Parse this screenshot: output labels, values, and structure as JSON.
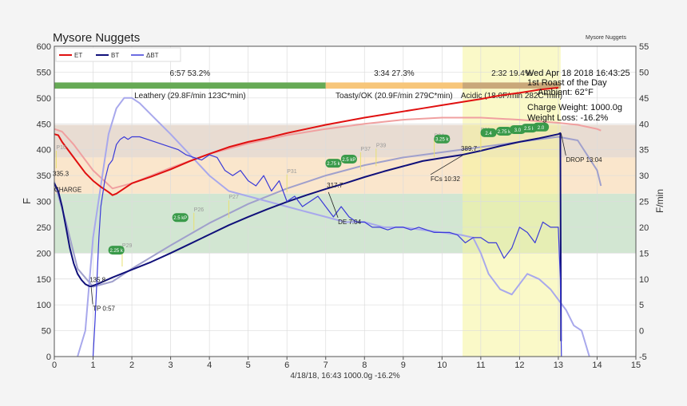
{
  "chart_data": {
    "type": "line",
    "title": "Mysore Nuggets",
    "corner_label": "Mysore Nuggets",
    "xlabel": "4/18/18, 16:43   1000.0g   -16.2%",
    "ylabel_left": "F",
    "ylabel_right": "F/min",
    "xlim": [
      0,
      15
    ],
    "ylim_left": [
      0,
      600
    ],
    "ylim_right": [
      -5,
      55
    ],
    "x_ticks": [
      "0",
      "1",
      "2",
      "3",
      "4",
      "5",
      "6",
      "7",
      "8",
      "9",
      "10",
      "11",
      "12",
      "13",
      "14",
      "15"
    ],
    "y_ticks_left": [
      "0",
      "50",
      "100",
      "150",
      "200",
      "250",
      "300",
      "350",
      "400",
      "450",
      "500",
      "550",
      "600"
    ],
    "y_ticks_right": [
      "-5",
      "0",
      "5",
      "10",
      "15",
      "20",
      "25",
      "30",
      "35",
      "40",
      "45",
      "50",
      "55"
    ],
    "grid": true,
    "legend_position": "top-left",
    "legend": [
      "ET",
      "BT",
      "ΔBT"
    ],
    "colors": {
      "ET": "#e01010",
      "BT": "#10107a",
      "dBT": "#3a3ad8",
      "ET_bg": "#f0a0a0",
      "BT_bg": "#a0a0cc",
      "dBT_bg": "#a8a8ec"
    },
    "bands": [
      {
        "from": 200,
        "to": 315,
        "color": "#d2e6d2"
      },
      {
        "from": 315,
        "to": 385,
        "color": "#fae6cc"
      },
      {
        "from": 385,
        "to": 448,
        "color": "#e8dcd2"
      }
    ],
    "dev_window": [
      10.53,
      13.06
    ],
    "phases": [
      {
        "from": 0,
        "to": 7.0,
        "color": "#66aa55",
        "time": "6:57  53.2%",
        "label": "Leathery (29.8F/min  123C*min)"
      },
      {
        "from": 7.0,
        "to": 10.53,
        "color": "#f7c67a",
        "time": "3:34  27.3%",
        "label": "Toasty/OK (20.9F/min  279C*min)"
      },
      {
        "from": 10.53,
        "to": 13.06,
        "color": "#c9a87a",
        "time": "2:32  19.4%",
        "label": "Acidic (18.0F/min  282C*min)"
      }
    ],
    "info_lines": [
      "Wed Apr 18 2018 16:43:25",
      "1st Roast of the Day",
      "Ambient: 62°F",
      "Charge Weight: 1000.0g",
      "Weight Loss: -16.2%"
    ],
    "events": [
      {
        "name": "CHARGE",
        "x": 0.0,
        "y": 340,
        "value": "335.3"
      },
      {
        "name": "TP 0:57",
        "x": 0.95,
        "y": 135,
        "value": "135.8"
      },
      {
        "name": "DE 7:04",
        "x": 7.07,
        "y": 318,
        "value": "317.7"
      },
      {
        "name": "FCs 10:32",
        "x": 10.53,
        "y": 389,
        "value": "389.7"
      },
      {
        "name": "DROP 13:04",
        "x": 13.07,
        "y": 432,
        "value": ""
      }
    ],
    "markers": [
      {
        "text": "2.25 k",
        "x": 1.6,
        "y": 205
      },
      {
        "text": "2.5 kP",
        "x": 3.25,
        "y": 268
      },
      {
        "text": "2.75 k",
        "x": 7.2,
        "y": 373
      },
      {
        "text": "2.5 kP",
        "x": 7.6,
        "y": 381
      },
      {
        "text": "3.25 k",
        "x": 10.0,
        "y": 420
      },
      {
        "text": "2.4",
        "x": 11.2,
        "y": 432
      },
      {
        "text": "2.75 k",
        "x": 11.6,
        "y": 435
      },
      {
        "text": "3.0",
        "x": 11.95,
        "y": 438
      },
      {
        "text": "2.5 k",
        "x": 12.25,
        "y": 441
      },
      {
        "text": "2.0",
        "x": 12.55,
        "y": 443
      }
    ],
    "tags": [
      {
        "text": "P29",
        "x": 1.75,
        "y": 208
      },
      {
        "text": "P26",
        "x": 3.6,
        "y": 278
      },
      {
        "text": "P27",
        "x": 4.5,
        "y": 302
      },
      {
        "text": "P31",
        "x": 6.0,
        "y": 352
      },
      {
        "text": "P37",
        "x": 7.9,
        "y": 395
      },
      {
        "text": "P39",
        "x": 8.3,
        "y": 402
      },
      {
        "text": "P04",
        "x": 9.8,
        "y": 420
      },
      {
        "text": "P11",
        "x": 11.0,
        "y": 432
      },
      {
        "text": "P10",
        "x": 0.05,
        "y": 398
      }
    ],
    "series": [
      {
        "name": "ET",
        "axis": "left",
        "x": [
          0,
          0.1,
          0.2,
          0.4,
          0.6,
          0.8,
          1.0,
          1.2,
          1.4,
          1.5,
          1.6,
          1.8,
          2.0,
          2.5,
          3.0,
          3.5,
          4.0,
          4.5,
          5.0,
          5.5,
          6.0,
          6.5,
          7.0,
          7.5,
          8.0,
          8.5,
          9.0,
          9.5,
          10.0,
          10.5,
          11.0,
          11.5,
          12.0,
          12.5,
          13.0
        ],
        "values": [
          430,
          428,
          415,
          395,
          375,
          355,
          340,
          328,
          318,
          312,
          315,
          325,
          335,
          348,
          362,
          378,
          392,
          405,
          415,
          423,
          432,
          440,
          448,
          455,
          462,
          468,
          474,
          480,
          486,
          492,
          498,
          505,
          510,
          516,
          520
        ]
      },
      {
        "name": "ET_background",
        "axis": "left",
        "x": [
          0,
          0.2,
          0.5,
          1.0,
          1.5,
          2.0,
          3.0,
          4.0,
          5.0,
          6.0,
          7.0,
          8.0,
          9.0,
          10.0,
          11.0,
          12.0,
          13.0,
          13.5,
          14.0,
          14.1
        ],
        "values": [
          440,
          435,
          410,
          360,
          325,
          335,
          365,
          392,
          412,
          428,
          440,
          450,
          458,
          462,
          462,
          458,
          452,
          448,
          440,
          437
        ]
      },
      {
        "name": "BT",
        "axis": "left",
        "x": [
          0,
          0.1,
          0.2,
          0.3,
          0.4,
          0.5,
          0.6,
          0.7,
          0.8,
          0.9,
          0.95,
          1.0,
          1.2,
          1.5,
          2.0,
          2.5,
          3.0,
          3.5,
          4.0,
          4.5,
          5.0,
          5.5,
          6.0,
          6.5,
          7.0,
          7.5,
          8.0,
          8.5,
          9.0,
          9.5,
          10.0,
          10.5,
          11.0,
          11.5,
          12.0,
          12.5,
          13.0,
          13.05,
          13.07
        ],
        "values": [
          335,
          320,
          290,
          250,
          210,
          180,
          160,
          148,
          140,
          136,
          135.8,
          137,
          143,
          153,
          168,
          183,
          200,
          218,
          236,
          254,
          270,
          285,
          299,
          312,
          324,
          335,
          347,
          358,
          368,
          378,
          384,
          389.7,
          398,
          407,
          415,
          422,
          430,
          432,
          30
        ]
      },
      {
        "name": "BT_background",
        "axis": "left",
        "x": [
          0,
          0.3,
          0.6,
          1.0,
          1.5,
          2.0,
          3.0,
          4.0,
          5.0,
          6.0,
          7.0,
          8.0,
          9.0,
          10.0,
          11.0,
          12.0,
          13.0,
          13.5,
          14.0,
          14.1
        ],
        "values": [
          338,
          260,
          170,
          135,
          145,
          170,
          215,
          258,
          295,
          325,
          350,
          370,
          385,
          395,
          405,
          415,
          425,
          418,
          360,
          330
        ]
      },
      {
        "name": "ΔBT",
        "axis": "right",
        "x": [
          1.0,
          1.05,
          1.1,
          1.15,
          1.2,
          1.3,
          1.4,
          1.5,
          1.6,
          1.7,
          1.8,
          1.9,
          2.0,
          2.2,
          2.4,
          2.6,
          2.8,
          3.0,
          3.2,
          3.4,
          3.6,
          3.8,
          4.0,
          4.2,
          4.4,
          4.6,
          4.8,
          5.0,
          5.2,
          5.4,
          5.6,
          5.8,
          6.0,
          6.2,
          6.4,
          6.6,
          6.8,
          7.0,
          7.2,
          7.4,
          7.6,
          7.8,
          8.0,
          8.2,
          8.4,
          8.6,
          8.8,
          9.0,
          9.2,
          9.4,
          9.6,
          9.8,
          10.0,
          10.2,
          10.4,
          10.6,
          10.8,
          11.0,
          11.2,
          11.4,
          11.6,
          11.8,
          12.0,
          12.2,
          12.4,
          12.6,
          12.8,
          13.0,
          13.05,
          13.08
        ],
        "values": [
          -5,
          2,
          10,
          18,
          24,
          29,
          32,
          33,
          36,
          37,
          37.5,
          37,
          37.5,
          37.5,
          37,
          36.5,
          36,
          35.5,
          35,
          34,
          33.5,
          33,
          34,
          33.5,
          31,
          30,
          31,
          29,
          28,
          30,
          27,
          29,
          25,
          26,
          24,
          25,
          26,
          24,
          22,
          24,
          22,
          21,
          21,
          20,
          20,
          19.5,
          20,
          20,
          19.5,
          20,
          19.5,
          19,
          19,
          19,
          18.5,
          17,
          18,
          18,
          17,
          17,
          14,
          16,
          20,
          19,
          17,
          21,
          20,
          20,
          10,
          -5
        ]
      },
      {
        "name": "ΔBT_background",
        "axis": "right",
        "x": [
          0.6,
          0.8,
          1.0,
          1.2,
          1.4,
          1.6,
          1.8,
          2.0,
          2.2,
          2.6,
          3.0,
          3.5,
          4.0,
          4.5,
          5.0,
          5.5,
          6.0,
          6.5,
          7.0,
          7.5,
          8.0,
          8.5,
          9.0,
          9.5,
          10.0,
          10.5,
          10.8,
          11.0,
          11.2,
          11.5,
          11.8,
          12.0,
          12.2,
          12.5,
          12.8,
          13.0,
          13.2,
          13.4,
          13.6,
          13.8
        ],
        "values": [
          -5,
          0,
          18,
          28,
          38,
          43,
          45,
          45,
          44,
          41,
          38,
          34,
          30,
          27,
          26,
          25,
          24,
          23,
          22,
          21,
          21,
          20,
          20,
          19.5,
          19,
          18.5,
          18,
          15,
          11,
          8,
          7,
          9,
          11,
          10,
          8,
          6,
          4,
          1,
          0,
          -5
        ]
      }
    ]
  }
}
